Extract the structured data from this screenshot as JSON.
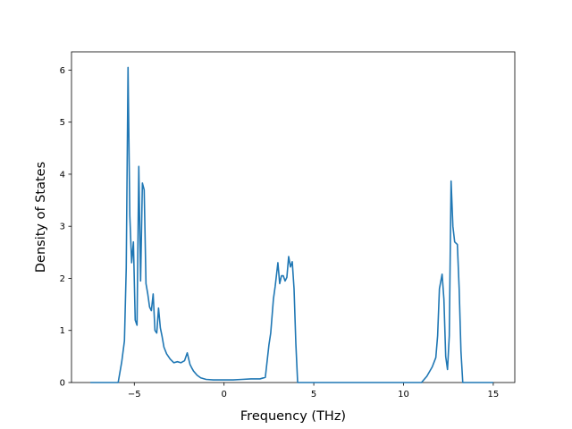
{
  "chart_data": {
    "type": "line",
    "title": "",
    "xlabel": "Frequency (THz)",
    "ylabel": "Density of States",
    "xlim": [
      -8.5,
      16.2
    ],
    "ylim": [
      0,
      6.35
    ],
    "xticks": [
      -5,
      0,
      5,
      10,
      15
    ],
    "yticks": [
      0,
      1,
      2,
      3,
      4,
      5,
      6
    ],
    "grid": false,
    "legend": "none",
    "series": [
      {
        "color": "#1f77b4",
        "x": [
          -7.45,
          -6.9,
          -6.3,
          -5.9,
          -5.7,
          -5.55,
          -5.45,
          -5.35,
          -5.25,
          -5.15,
          -5.05,
          -4.95,
          -4.85,
          -4.75,
          -4.65,
          -4.55,
          -4.45,
          -4.35,
          -4.25,
          -4.15,
          -4.05,
          -3.95,
          -3.85,
          -3.75,
          -3.65,
          -3.55,
          -3.45,
          -3.35,
          -3.2,
          -3.0,
          -2.8,
          -2.6,
          -2.4,
          -2.2,
          -2.05,
          -1.9,
          -1.8,
          -1.7,
          -1.5,
          -1.3,
          -1.0,
          -0.6,
          0,
          0.5,
          1.0,
          1.5,
          2.0,
          2.3,
          2.5,
          2.6,
          2.75,
          2.85,
          3.0,
          3.1,
          3.2,
          3.3,
          3.4,
          3.5,
          3.6,
          3.7,
          3.8,
          3.9,
          4.0,
          4.1,
          4.2,
          4.5,
          6,
          8,
          10,
          11.0,
          11.3,
          11.6,
          11.8,
          11.9,
          12.0,
          12.15,
          12.25,
          12.35,
          12.45,
          12.55,
          12.65,
          12.75,
          12.85,
          13.0,
          13.1,
          13.2,
          13.3,
          13.5,
          15.0
        ],
        "y": [
          0,
          0,
          0,
          0,
          0.4,
          0.8,
          2.2,
          6.05,
          3.2,
          2.3,
          2.7,
          1.2,
          1.1,
          4.15,
          1.95,
          3.83,
          3.7,
          1.9,
          1.7,
          1.45,
          1.38,
          1.7,
          1.0,
          0.95,
          1.43,
          1.05,
          0.88,
          0.68,
          0.55,
          0.45,
          0.38,
          0.4,
          0.38,
          0.42,
          0.57,
          0.35,
          0.28,
          0.22,
          0.14,
          0.09,
          0.06,
          0.05,
          0.05,
          0.05,
          0.06,
          0.07,
          0.07,
          0.1,
          0.72,
          0.95,
          1.6,
          1.85,
          2.3,
          1.9,
          2.05,
          2.05,
          1.95,
          2.02,
          2.42,
          2.22,
          2.32,
          1.8,
          0.75,
          0,
          0,
          0,
          0,
          0,
          0,
          0,
          0.12,
          0.3,
          0.48,
          0.9,
          1.8,
          2.08,
          1.6,
          0.5,
          0.25,
          0.9,
          3.87,
          3.0,
          2.7,
          2.65,
          1.8,
          0.6,
          0,
          0,
          0
        ]
      }
    ]
  }
}
